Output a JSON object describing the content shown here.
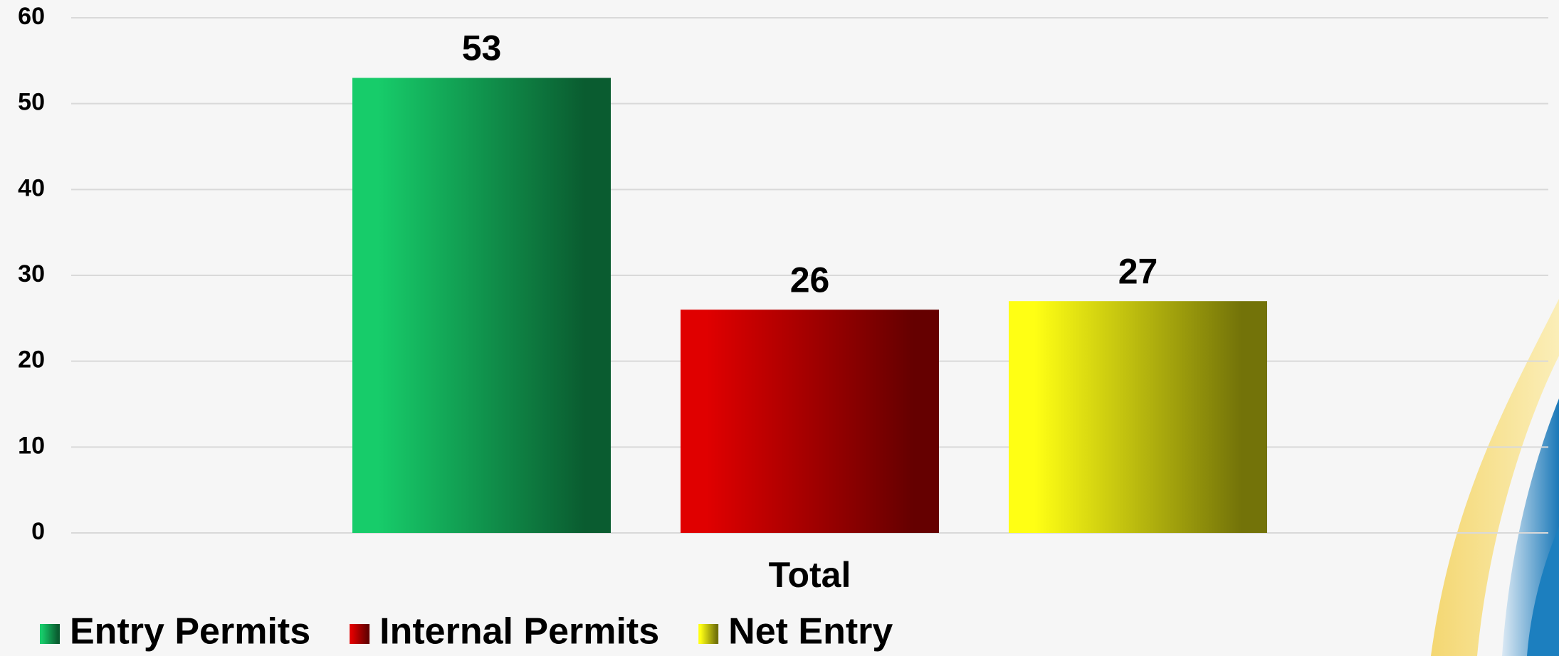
{
  "chart_data": {
    "type": "bar",
    "categories": [
      "Total"
    ],
    "series": [
      {
        "name": "Entry Permits",
        "color": "#17cc6a",
        "values": [
          53
        ]
      },
      {
        "name": "Internal Permits",
        "color": "#e00000",
        "values": [
          26
        ]
      },
      {
        "name": "Net Entry",
        "color": "#ffff14",
        "values": [
          27
        ]
      }
    ],
    "ylim": [
      0,
      60
    ],
    "yticks": [
      0,
      10,
      20,
      30,
      40,
      50,
      60
    ],
    "grid": true,
    "legend": "bottom-left"
  }
}
